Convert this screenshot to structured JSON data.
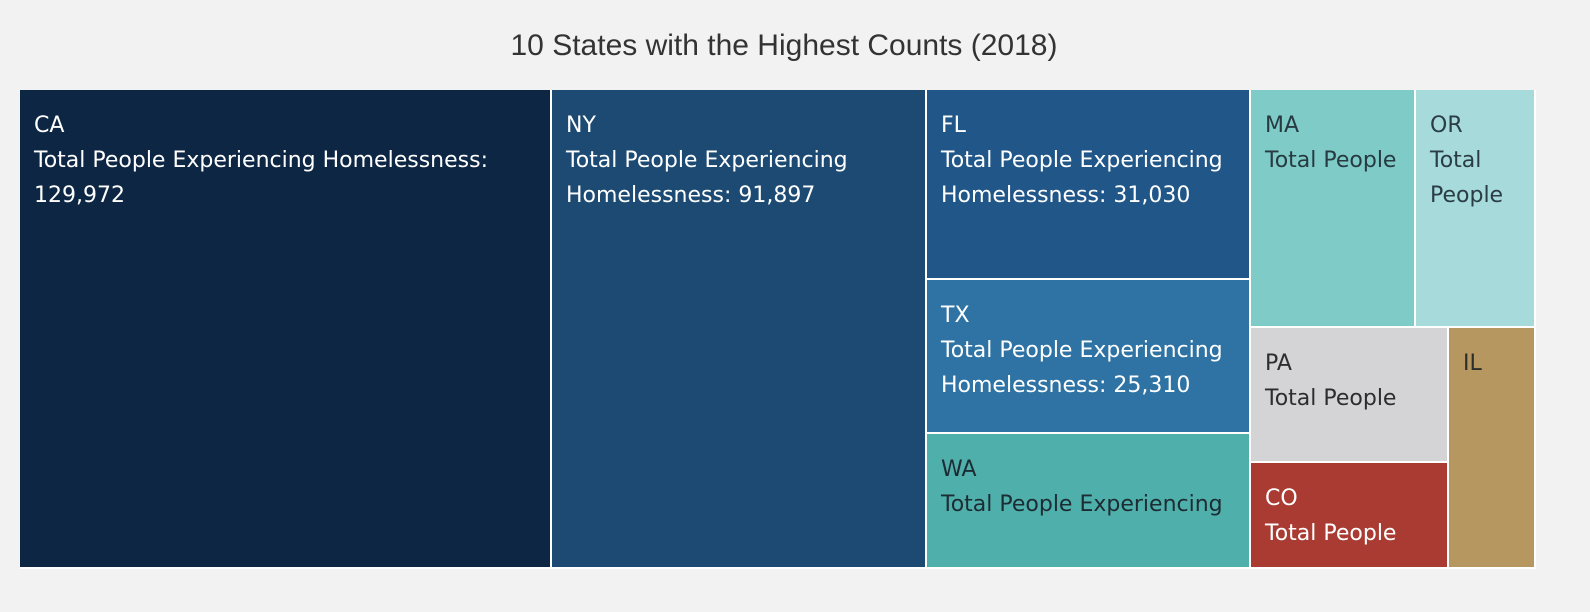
{
  "chart_data": {
    "type": "treemap",
    "title": "10 States with the Highest Counts (2018)",
    "measure": "Total People Experiencing Homelessness",
    "items": [
      {
        "id": "ca",
        "state": "CA",
        "label": "Total People Experiencing Homelessness: 129,972",
        "value": 129972,
        "color": "#0d2643",
        "text_color": "#ffffff"
      },
      {
        "id": "ny",
        "state": "NY",
        "label": "Total People Experiencing Homelessness: 91,897",
        "value": 91897,
        "color": "#1c4a72",
        "text_color": "#ffffff"
      },
      {
        "id": "fl",
        "state": "FL",
        "label": "Total People Experiencing Homelessness: 31,030",
        "value": 31030,
        "color": "#215689",
        "text_color": "#ffffff"
      },
      {
        "id": "tx",
        "state": "TX",
        "label": "Total People Experiencing Homelessness: 25,310",
        "value": 25310,
        "color": "#2e73a3",
        "text_color": "#ffffff"
      },
      {
        "id": "wa",
        "state": "WA",
        "label": "Total People Experiencing",
        "value": 22304,
        "color": "#4fb0ab",
        "text_color": "#1d2b33"
      },
      {
        "id": "ma",
        "state": "MA",
        "label": "Total People",
        "value": 20068,
        "color": "#7fcbc8",
        "text_color": "#263a40"
      },
      {
        "id": "or",
        "state": "OR",
        "label": "Total People",
        "value": 14476,
        "color": "#a6dadb",
        "text_color": "#2b3d44"
      },
      {
        "id": "pa",
        "state": "PA",
        "label": "Total People",
        "value": 13512,
        "color": "#d4d4d6",
        "text_color": "#2d2d2d"
      },
      {
        "id": "co",
        "state": "CO",
        "label": "Total People",
        "value": 10857,
        "color": "#a93b33",
        "text_color": "#ffffff"
      },
      {
        "id": "il",
        "state": "IL",
        "label": "",
        "value": 10643,
        "color": "#b5975f",
        "text_color": "#2d2d2d"
      }
    ]
  }
}
